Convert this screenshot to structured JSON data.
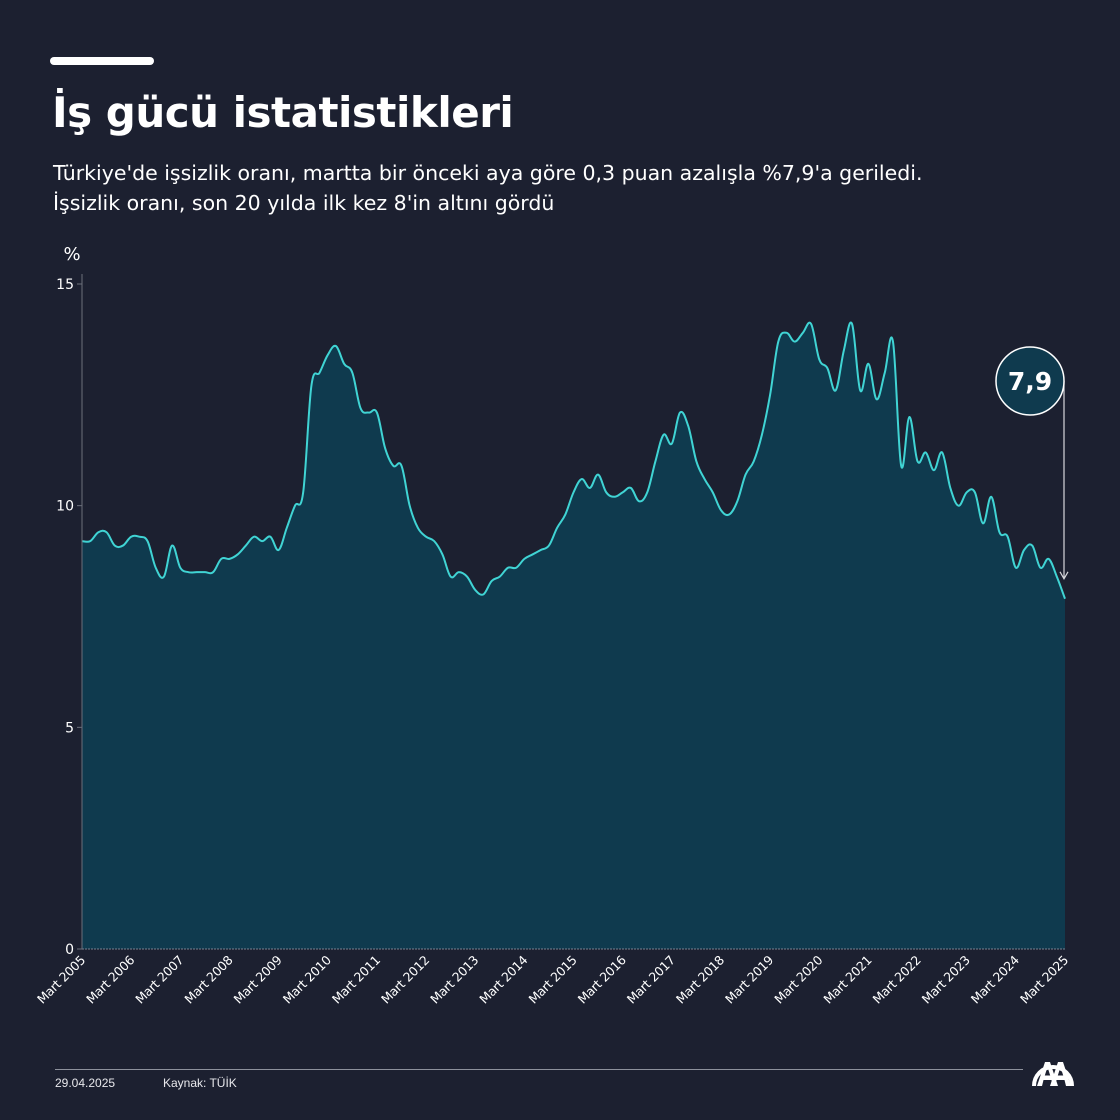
{
  "header": {
    "title": "İş gücü istatistikleri",
    "subtitle_line1": "Türkiye'de işsizlik oranı, martta bir önceki aya göre 0,3 puan azalışla %7,9'a geriledi.",
    "subtitle_line2": "İşsizlik oranı, son 20 yılda ilk kez 8'in altını gördü"
  },
  "footer": {
    "date": "29.04.2025",
    "source": "Kaynak: TÜİK",
    "logo": "aa-logo-icon"
  },
  "colors": {
    "background": "#1c2030",
    "line": "#40d4d4",
    "area": "#0f3a4e",
    "axis": "#6b6f7a",
    "text": "#ffffff"
  },
  "chart_data": {
    "type": "area",
    "title": "İş gücü istatistikleri",
    "xlabel": "",
    "ylabel": "%",
    "ylim": [
      0,
      15
    ],
    "yticks": [
      0,
      5,
      10,
      15
    ],
    "ytick_labels": [
      "0",
      "5",
      "10",
      "15"
    ],
    "x_start": "Mart 2005",
    "x_end": "Mart 2025",
    "x_step_months": 2,
    "xtick_labels": [
      "Mart 2005",
      "Mart 2006",
      "Mart 2007",
      "Mart 2008",
      "Mart 2009",
      "Mart 2010",
      "Mart 2011",
      "Mart 2012",
      "Mart 2013",
      "Mart 2014",
      "Mart 2015",
      "Mart 2016",
      "Mart 2017",
      "Mart 2018",
      "Mart 2019",
      "Mart 2020",
      "Mart 2021",
      "Mart 2022",
      "Mart 2023",
      "Mart 2024",
      "Mart 2025"
    ],
    "grid": false,
    "legend": "none",
    "annotation": {
      "label": "7,9",
      "target": "Mart 2025",
      "value": 7.9
    },
    "series": [
      {
        "name": "İşsizlik oranı (%)",
        "values": [
          9.2,
          9.2,
          9.4,
          9.4,
          9.1,
          9.1,
          9.3,
          9.3,
          9.2,
          8.6,
          8.4,
          9.1,
          8.6,
          8.5,
          8.5,
          8.5,
          8.5,
          8.8,
          8.8,
          8.9,
          9.1,
          9.3,
          9.2,
          9.3,
          9.0,
          9.5,
          10.0,
          10.3,
          12.7,
          13.0,
          13.4,
          13.6,
          13.2,
          13.0,
          12.2,
          12.1,
          12.1,
          11.3,
          10.9,
          10.9,
          10.0,
          9.5,
          9.3,
          9.2,
          8.9,
          8.4,
          8.5,
          8.4,
          8.1,
          8.0,
          8.3,
          8.4,
          8.6,
          8.6,
          8.8,
          8.9,
          9.0,
          9.1,
          9.5,
          9.8,
          10.3,
          10.6,
          10.4,
          10.7,
          10.3,
          10.2,
          10.3,
          10.4,
          10.1,
          10.3,
          11.0,
          11.6,
          11.4,
          12.1,
          11.8,
          11.0,
          10.6,
          10.3,
          9.9,
          9.8,
          10.1,
          10.7,
          11.0,
          11.6,
          12.5,
          13.7,
          13.9,
          13.7,
          13.9,
          14.1,
          13.3,
          13.1,
          12.6,
          13.5,
          14.1,
          12.6,
          13.2,
          12.4,
          13.0,
          13.7,
          10.9,
          12.0,
          11.0,
          11.2,
          10.8,
          11.2,
          10.4,
          10.0,
          10.3,
          10.3,
          9.6,
          10.2,
          9.4,
          9.3,
          8.6,
          9.0,
          9.1,
          8.6,
          8.8,
          8.4,
          7.9
        ]
      }
    ]
  }
}
